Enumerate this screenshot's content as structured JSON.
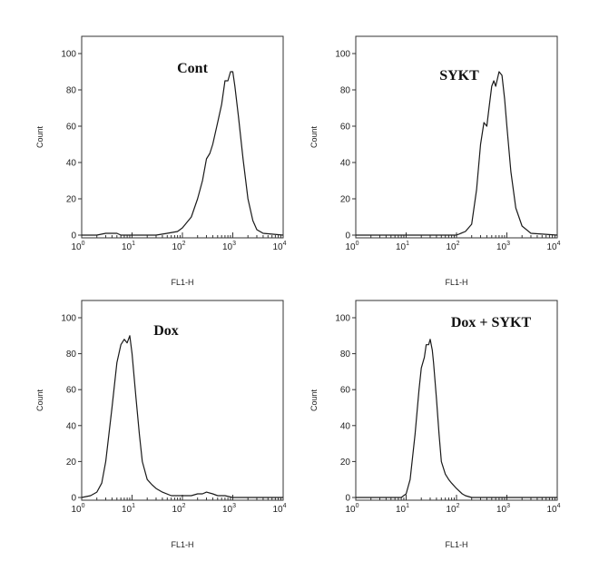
{
  "chart_data": [
    {
      "type": "line",
      "title": "Cont",
      "xlabel": "FL1-H",
      "ylabel": "Count",
      "xscale": "log",
      "xlim": [
        1,
        10000
      ],
      "ylim": [
        0,
        100
      ],
      "yticks": [
        "0",
        "20",
        "40",
        "60",
        "80",
        "100"
      ],
      "xticks": [
        {
          "base": "10",
          "exp": "0"
        },
        {
          "base": "10",
          "exp": "1"
        },
        {
          "base": "10",
          "exp": "2"
        },
        {
          "base": "10",
          "exp": "3"
        },
        {
          "base": "10",
          "exp": "4"
        }
      ],
      "title_pos": "upper-center",
      "series": [
        {
          "x": [
            1,
            2,
            3,
            5,
            6,
            10,
            30,
            50,
            80,
            100,
            150,
            200,
            250,
            300,
            350,
            400,
            500,
            600,
            700,
            800,
            900,
            1000,
            1100,
            1300,
            1600,
            2000,
            2500,
            3000,
            4000,
            10000
          ],
          "y": [
            0,
            0,
            1,
            1,
            0,
            0,
            0,
            1,
            2,
            4,
            10,
            20,
            30,
            42,
            45,
            50,
            62,
            72,
            85,
            85,
            90,
            90,
            82,
            65,
            42,
            20,
            8,
            3,
            1,
            0
          ]
        }
      ]
    },
    {
      "type": "line",
      "title": "SYKT",
      "xlabel": "FL1-H",
      "ylabel": "Count",
      "xscale": "log",
      "xlim": [
        1,
        10000
      ],
      "ylim": [
        0,
        100
      ],
      "yticks": [
        "0",
        "20",
        "40",
        "60",
        "80",
        "100"
      ],
      "xticks": [
        {
          "base": "10",
          "exp": "0"
        },
        {
          "base": "10",
          "exp": "1"
        },
        {
          "base": "10",
          "exp": "2"
        },
        {
          "base": "10",
          "exp": "3"
        },
        {
          "base": "10",
          "exp": "4"
        }
      ],
      "title_pos": "upper-center",
      "series": [
        {
          "x": [
            1,
            100,
            150,
            200,
            250,
            300,
            350,
            400,
            450,
            500,
            550,
            600,
            700,
            800,
            900,
            1000,
            1200,
            1500,
            2000,
            3000,
            10000
          ],
          "y": [
            0,
            0,
            2,
            6,
            25,
            50,
            62,
            60,
            72,
            82,
            85,
            82,
            90,
            88,
            75,
            60,
            35,
            15,
            5,
            1,
            0
          ]
        }
      ]
    },
    {
      "type": "line",
      "title": "Dox",
      "xlabel": "FL1-H",
      "ylabel": "Count",
      "xscale": "log",
      "xlim": [
        1,
        10000
      ],
      "ylim": [
        0,
        100
      ],
      "yticks": [
        "0",
        "20",
        "40",
        "60",
        "80",
        "100"
      ],
      "xticks": [
        {
          "base": "10",
          "exp": "0"
        },
        {
          "base": "10",
          "exp": "1"
        },
        {
          "base": "10",
          "exp": "2"
        },
        {
          "base": "10",
          "exp": "3"
        },
        {
          "base": "10",
          "exp": "4"
        }
      ],
      "title_pos": "upper-center",
      "series": [
        {
          "x": [
            1,
            1.5,
            2,
            2.5,
            3,
            4,
            5,
            6,
            7,
            8,
            9,
            10,
            12,
            14,
            16,
            20,
            25,
            30,
            40,
            60,
            100,
            150,
            200,
            250,
            300,
            400,
            500,
            700,
            1000,
            10000
          ],
          "y": [
            0,
            1,
            3,
            8,
            20,
            50,
            75,
            85,
            88,
            86,
            90,
            80,
            55,
            35,
            20,
            10,
            7,
            5,
            3,
            1,
            1,
            1,
            2,
            2,
            3,
            2,
            1,
            1,
            0,
            0
          ]
        }
      ]
    },
    {
      "type": "line",
      "title": "Dox + SYKT",
      "xlabel": "FL1-H",
      "ylabel": "Count",
      "xscale": "log",
      "xlim": [
        1,
        10000
      ],
      "ylim": [
        0,
        100
      ],
      "yticks": [
        "0",
        "20",
        "40",
        "60",
        "80",
        "100"
      ],
      "xticks": [
        {
          "base": "10",
          "exp": "0"
        },
        {
          "base": "10",
          "exp": "1"
        },
        {
          "base": "10",
          "exp": "2"
        },
        {
          "base": "10",
          "exp": "3"
        },
        {
          "base": "10",
          "exp": "4"
        }
      ],
      "title_pos": "upper-center",
      "series": [
        {
          "x": [
            1,
            8,
            10,
            12,
            15,
            18,
            20,
            23,
            25,
            28,
            30,
            33,
            35,
            40,
            45,
            50,
            60,
            70,
            80,
            100,
            130,
            150,
            200,
            10000
          ],
          "y": [
            0,
            0,
            2,
            10,
            35,
            60,
            72,
            78,
            85,
            85,
            88,
            82,
            75,
            55,
            35,
            20,
            13,
            10,
            8,
            5,
            2,
            1,
            0,
            0
          ]
        }
      ]
    }
  ]
}
